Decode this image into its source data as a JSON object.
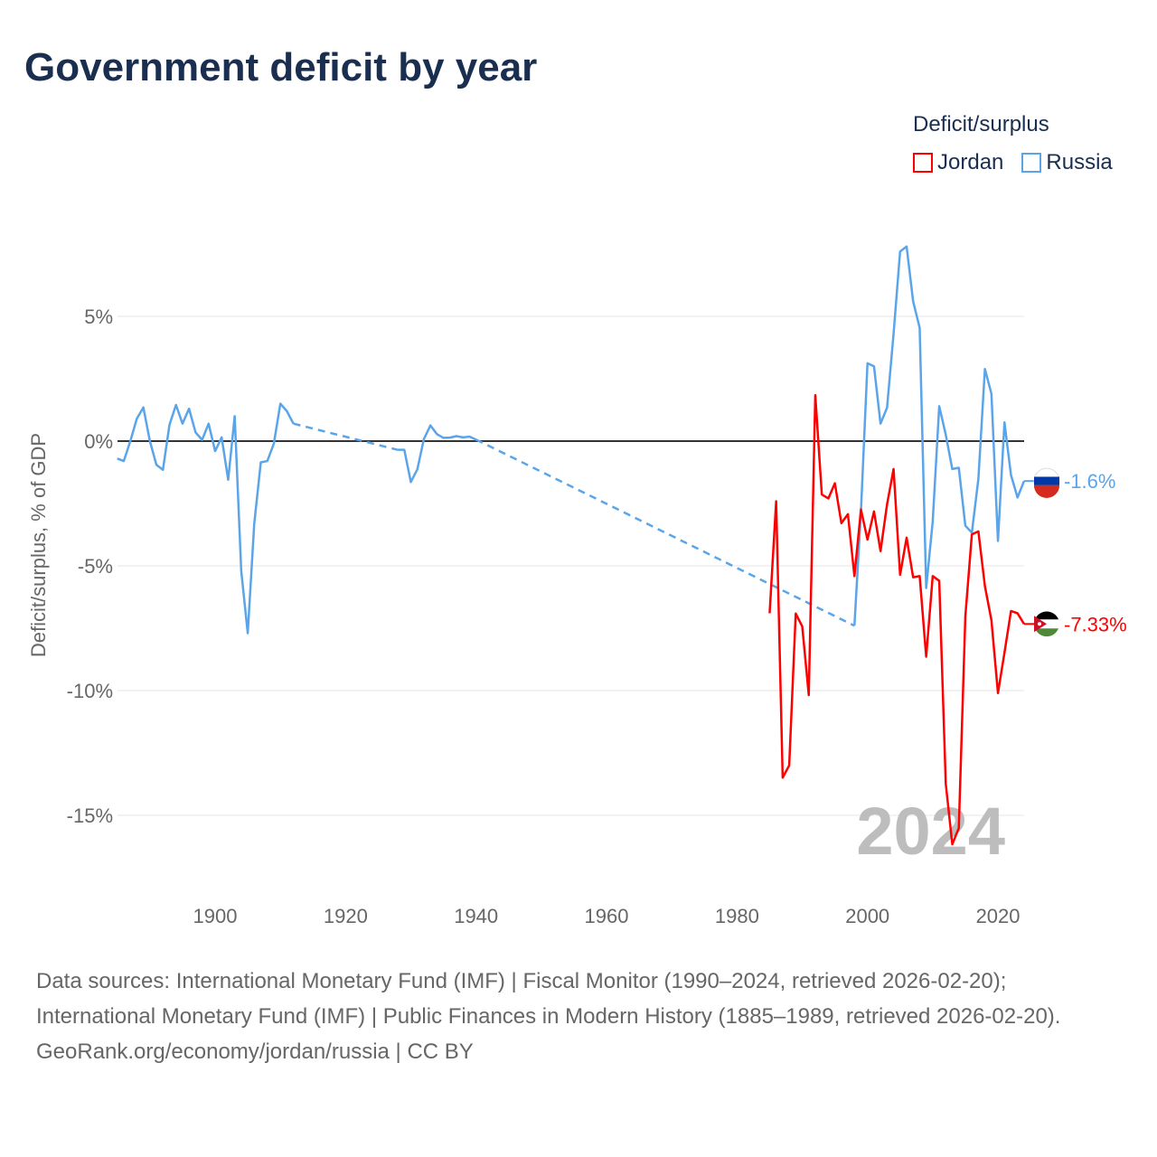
{
  "title": "Government deficit by year",
  "legend": {
    "title": "Deficit/surplus",
    "items": [
      {
        "name": "Jordan",
        "color": "#ff0000"
      },
      {
        "name": "Russia",
        "color": "#5aa5ea"
      }
    ]
  },
  "footer": {
    "sources": "Data sources: International Monetary Fund (IMF) | Fiscal Monitor (1990–2024, retrieved 2026-02-20); International Monetary Fund (IMF) | Public Finances in Modern History (1885–1989, retrieved 2026-02-20).",
    "credit": "GeoRank.org/economy/jordan/russia | CC BY"
  },
  "chart_data": {
    "type": "line",
    "title": "Government deficit by year",
    "ylabel": "Deficit/surplus, % of GDP",
    "xlabel": "",
    "xlim": [
      1885,
      2024
    ],
    "ylim": [
      -17,
      9
    ],
    "xticks": [
      {
        "v": 1900,
        "label": "1900"
      },
      {
        "v": 1920,
        "label": "1920"
      },
      {
        "v": 1940,
        "label": "1940"
      },
      {
        "v": 1960,
        "label": "1960"
      },
      {
        "v": 1980,
        "label": "1980"
      },
      {
        "v": 2000,
        "label": "2000"
      },
      {
        "v": 2020,
        "label": "2020"
      }
    ],
    "yticks": [
      {
        "v": 5,
        "label": "5%"
      },
      {
        "v": 0,
        "label": "0%"
      },
      {
        "v": -5,
        "label": "-5%"
      },
      {
        "v": -10,
        "label": "-10%"
      },
      {
        "v": -15,
        "label": "-15%"
      }
    ],
    "current_year": "2024",
    "series": [
      {
        "name": "Russia",
        "color": "#5aa5ea",
        "end_label": "-1.6%",
        "points": [
          [
            1885,
            -0.7
          ],
          [
            1886,
            -0.8
          ],
          [
            1887,
            0
          ],
          [
            1888,
            0.9
          ],
          [
            1889,
            1.35
          ],
          [
            1890,
            0
          ],
          [
            1891,
            -0.95
          ],
          [
            1892,
            -1.15
          ],
          [
            1893,
            0.65
          ],
          [
            1894,
            1.45
          ],
          [
            1895,
            0.7
          ],
          [
            1896,
            1.3
          ],
          [
            1897,
            0.35
          ],
          [
            1898,
            0.05
          ],
          [
            1899,
            0.7
          ],
          [
            1900,
            -0.4
          ],
          [
            1901,
            0.15
          ],
          [
            1902,
            -1.55
          ],
          [
            1903,
            1.0
          ],
          [
            1904,
            -5.2
          ],
          [
            1905,
            -7.7
          ],
          [
            1906,
            -3.3
          ],
          [
            1907,
            -0.85
          ],
          [
            1908,
            -0.8
          ],
          [
            1909,
            -0.1
          ],
          [
            1910,
            1.5
          ],
          [
            1911,
            1.2
          ],
          [
            1912,
            0.7
          ],
          [
            1928,
            -0.35
          ],
          [
            1929,
            -0.35
          ],
          [
            1930,
            -1.64
          ],
          [
            1931,
            -1.13
          ],
          [
            1932,
            0.08
          ],
          [
            1933,
            0.63
          ],
          [
            1934,
            0.28
          ],
          [
            1935,
            0.13
          ],
          [
            1936,
            0.14
          ],
          [
            1937,
            0.2
          ],
          [
            1938,
            0.15
          ],
          [
            1939,
            0.18
          ],
          [
            1940,
            0.06
          ],
          [
            1998,
            -7.4
          ],
          [
            1999,
            -2.8
          ],
          [
            2000,
            3.12
          ],
          [
            2001,
            3.0
          ],
          [
            2002,
            0.7
          ],
          [
            2003,
            1.34
          ],
          [
            2004,
            4.3
          ],
          [
            2005,
            7.6
          ],
          [
            2006,
            7.8
          ],
          [
            2007,
            5.6
          ],
          [
            2008,
            4.54
          ],
          [
            2009,
            -5.89
          ],
          [
            2010,
            -3.22
          ],
          [
            2011,
            1.4
          ],
          [
            2012,
            0.26
          ],
          [
            2013,
            -1.12
          ],
          [
            2014,
            -1.07
          ],
          [
            2015,
            -3.39
          ],
          [
            2016,
            -3.67
          ],
          [
            2017,
            -1.52
          ],
          [
            2018,
            2.89
          ],
          [
            2019,
            1.9
          ],
          [
            2020,
            -4.0
          ],
          [
            2021,
            0.75
          ],
          [
            2022,
            -1.36
          ],
          [
            2023,
            -2.26
          ],
          [
            2024,
            -1.6
          ]
        ]
      },
      {
        "name": "Jordan",
        "color": "#ff0000",
        "end_label": "-7.33%",
        "points": [
          [
            1985,
            -6.9
          ],
          [
            1986,
            -2.41
          ],
          [
            1987,
            -13.49
          ],
          [
            1988,
            -13.0
          ],
          [
            1989,
            -6.91
          ],
          [
            1990,
            -7.43
          ],
          [
            1991,
            -10.18
          ],
          [
            1992,
            1.84
          ],
          [
            1993,
            -2.14
          ],
          [
            1994,
            -2.3
          ],
          [
            1995,
            -1.69
          ],
          [
            1996,
            -3.29
          ],
          [
            1997,
            -2.93
          ],
          [
            1998,
            -5.41
          ],
          [
            1999,
            -2.74
          ],
          [
            2000,
            -3.95
          ],
          [
            2001,
            -2.82
          ],
          [
            2002,
            -4.41
          ],
          [
            2003,
            -2.54
          ],
          [
            2004,
            -1.12
          ],
          [
            2005,
            -5.36
          ],
          [
            2006,
            -3.87
          ],
          [
            2007,
            -5.46
          ],
          [
            2008,
            -5.41
          ],
          [
            2009,
            -8.64
          ],
          [
            2010,
            -5.41
          ],
          [
            2011,
            -5.6
          ],
          [
            2012,
            -13.73
          ],
          [
            2013,
            -16.16
          ],
          [
            2014,
            -15.51
          ],
          [
            2015,
            -7.03
          ],
          [
            2016,
            -3.74
          ],
          [
            2017,
            -3.62
          ],
          [
            2018,
            -5.81
          ],
          [
            2019,
            -7.18
          ],
          [
            2020,
            -10.1
          ],
          [
            2021,
            -8.48
          ],
          [
            2022,
            -6.81
          ],
          [
            2023,
            -6.9
          ],
          [
            2024,
            -7.33
          ]
        ]
      }
    ]
  }
}
